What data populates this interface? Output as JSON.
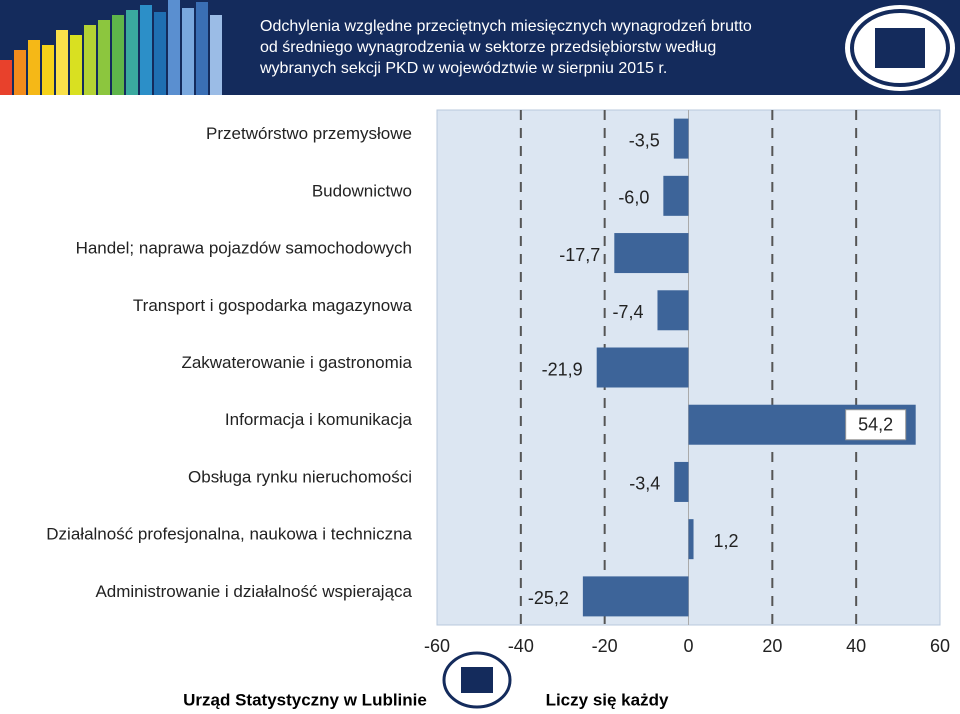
{
  "chart_data": {
    "type": "bar",
    "orientation": "horizontal",
    "title": [
      "Odchylenia względne przeciętnych miesięcznych wynagrodzeń brutto",
      "od średniego wynagrodzenia w sektorze przedsiębiorstw według",
      "wybranych sekcji PKD w województwie w sierpniu 2015 r."
    ],
    "categories": [
      "Przetwórstwo przemysłowe",
      "Budownictwo",
      "Handel; naprawa pojazdów samochodowych",
      "Transport i gospodarka magazynowa",
      "Zakwaterowanie i gastronomia",
      "Informacja i komunikacja",
      "Obsługa rynku nieruchomości",
      "Działalność profesjonalna, naukowa i techniczna",
      "Administrowanie i działalność wspierająca"
    ],
    "values": [
      -3.5,
      -6.0,
      -17.7,
      -7.4,
      -21.9,
      54.2,
      -3.4,
      1.2,
      -25.2
    ],
    "value_labels": [
      "-3,5",
      "-6,0",
      "-17,7",
      "-7,4",
      "-21,9",
      "54,2",
      "-3,4",
      "1,2",
      "-25,2"
    ],
    "color": "#3d6499",
    "xlim": [
      -60,
      60
    ],
    "xticks": [
      -60,
      -40,
      -20,
      0,
      20,
      40,
      60
    ],
    "grid": true
  },
  "footer": {
    "left": "Urząd Statystyczny w Lublinie",
    "right": "Liczy się każdy"
  }
}
